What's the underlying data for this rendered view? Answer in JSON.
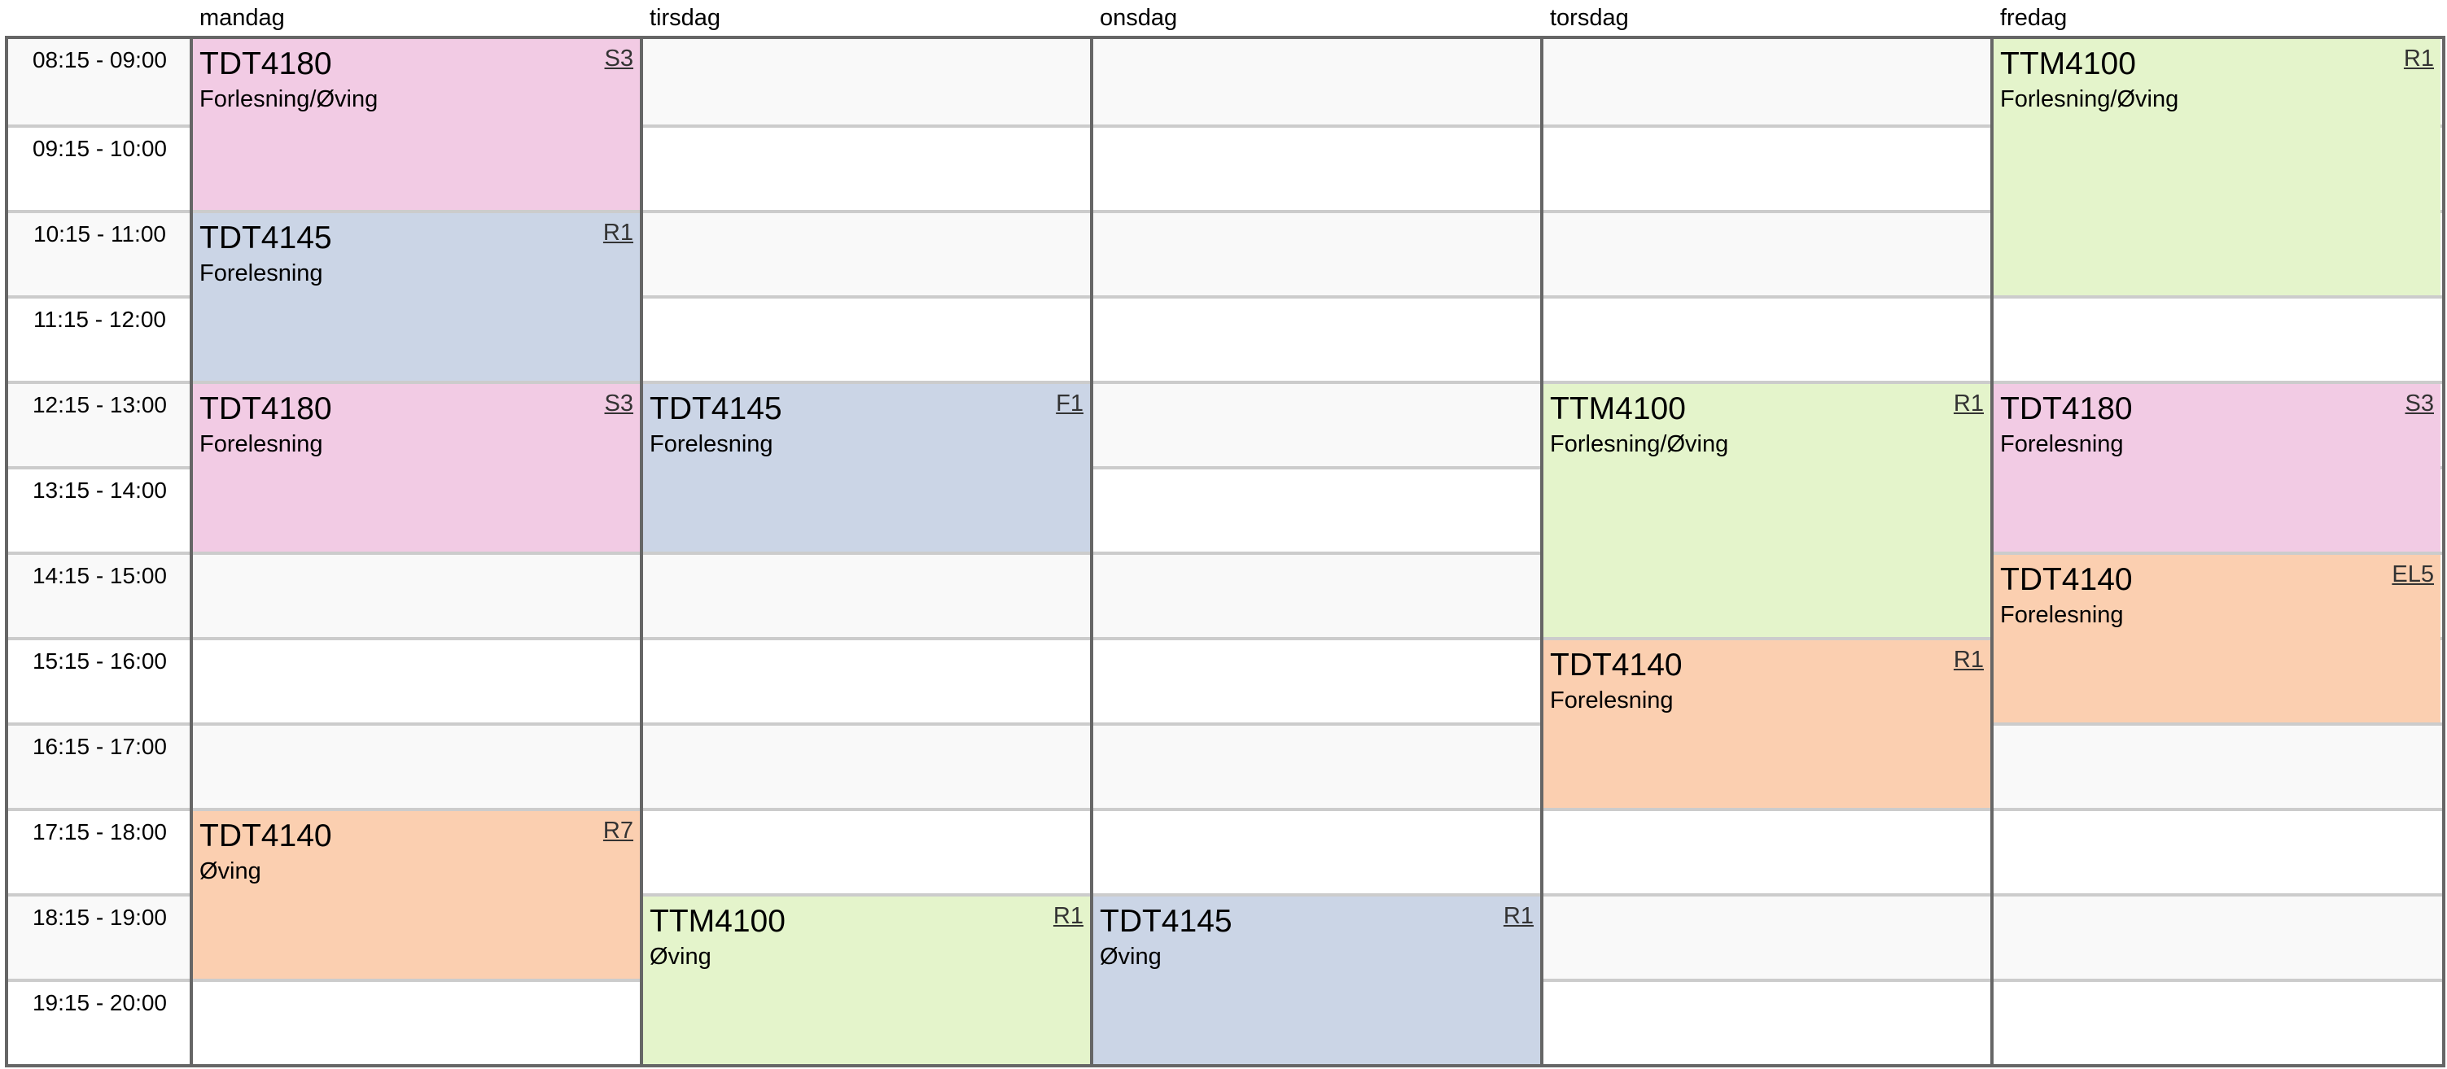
{
  "days": [
    "mandag",
    "tirsdag",
    "onsdag",
    "torsdag",
    "fredag"
  ],
  "times": [
    "08:15 - 09:00",
    "09:15 - 10:00",
    "10:15 - 11:00",
    "11:15 - 12:00",
    "12:15 - 13:00",
    "13:15 - 14:00",
    "14:15 - 15:00",
    "15:15 - 16:00",
    "16:15 - 17:00",
    "17:15 - 18:00",
    "18:15 - 19:00",
    "19:15 - 20:00"
  ],
  "colors": {
    "TDT4180": "#f2cbe4",
    "TDT4145": "#cbd5e6",
    "TTM4100": "#e4f4cb",
    "TDT4140": "#fbcfb0"
  },
  "events": [
    {
      "day": "mandag",
      "start": "08:15",
      "end": "10:00",
      "code": "TDT4180",
      "type": "Forlesning/Øving",
      "room": "S3"
    },
    {
      "day": "mandag",
      "start": "10:15",
      "end": "12:00",
      "code": "TDT4145",
      "type": "Forelesning",
      "room": "R1"
    },
    {
      "day": "mandag",
      "start": "12:15",
      "end": "14:00",
      "code": "TDT4180",
      "type": "Forelesning",
      "room": "S3"
    },
    {
      "day": "mandag",
      "start": "17:15",
      "end": "19:00",
      "code": "TDT4140",
      "type": "Øving",
      "room": "R7"
    },
    {
      "day": "tirsdag",
      "start": "12:15",
      "end": "14:00",
      "code": "TDT4145",
      "type": "Forelesning",
      "room": "F1"
    },
    {
      "day": "tirsdag",
      "start": "18:15",
      "end": "20:00",
      "code": "TTM4100",
      "type": "Øving",
      "room": "R1"
    },
    {
      "day": "onsdag",
      "start": "18:15",
      "end": "20:00",
      "code": "TDT4145",
      "type": "Øving",
      "room": "R1"
    },
    {
      "day": "torsdag",
      "start": "12:15",
      "end": "15:00",
      "code": "TTM4100",
      "type": "Forlesning/Øving",
      "room": "R1"
    },
    {
      "day": "torsdag",
      "start": "15:15",
      "end": "17:00",
      "code": "TDT4140",
      "type": "Forelesning",
      "room": "R1"
    },
    {
      "day": "fredag",
      "start": "08:15",
      "end": "11:00",
      "code": "TTM4100",
      "type": "Forlesning/Øving",
      "room": "R1"
    },
    {
      "day": "fredag",
      "start": "12:15",
      "end": "14:00",
      "code": "TDT4180",
      "type": "Forelesning",
      "room": "S3"
    },
    {
      "day": "fredag",
      "start": "14:15",
      "end": "16:00",
      "code": "TDT4140",
      "type": "Forelesning",
      "room": "EL5"
    }
  ]
}
